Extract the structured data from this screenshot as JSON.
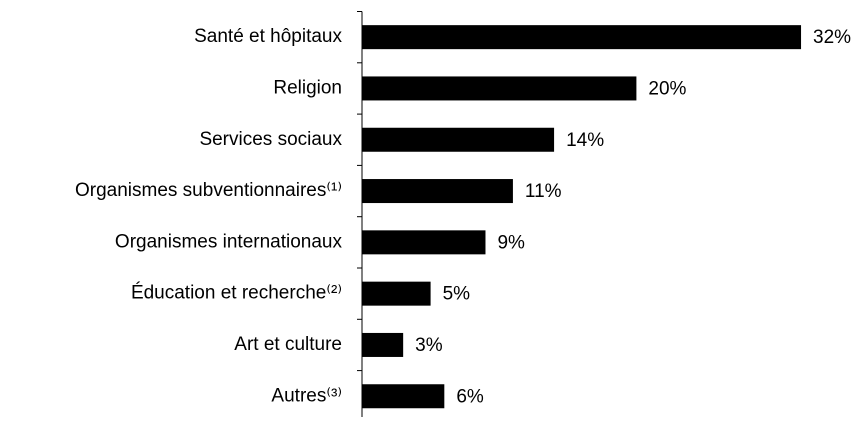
{
  "chart_data": {
    "type": "bar",
    "orientation": "horizontal",
    "categories": [
      "Santé et hôpitaux",
      "Religion",
      "Services sociaux",
      "Organismes subventionnaires⁽¹⁾",
      "Organismes internationaux",
      "Éducation et recherche⁽²⁾",
      "Art et culture",
      "Autres⁽³⁾"
    ],
    "values": [
      32,
      20,
      14,
      11,
      9,
      5,
      3,
      6
    ],
    "value_labels": [
      "32%",
      "20%",
      "14%",
      "11%",
      "9%",
      "5%",
      "3%",
      "6%"
    ],
    "color": "#000000"
  }
}
